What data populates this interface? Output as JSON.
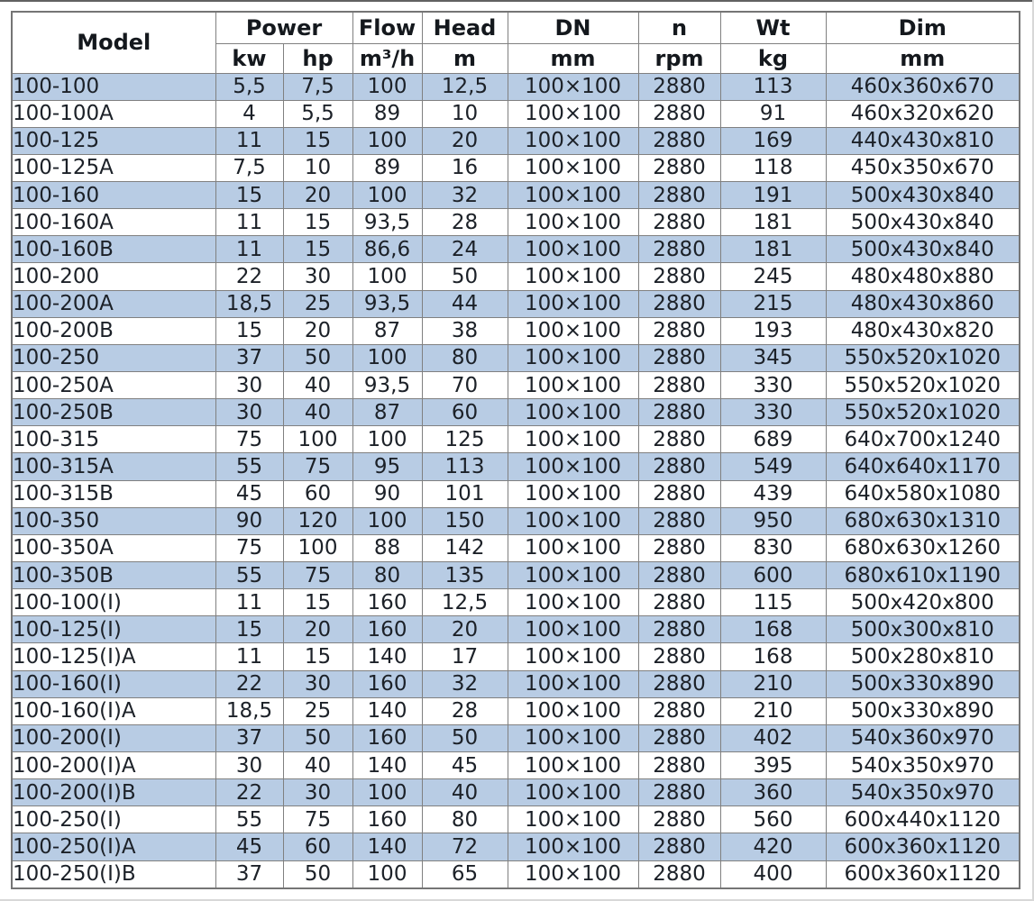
{
  "colors": {
    "stripe_blue": "#b8cce4",
    "grid_gray": "#808080",
    "text": "#1c2128"
  },
  "table": {
    "header": {
      "model": "Model",
      "power": "Power",
      "power_unit_kw": "kw",
      "power_unit_hp": "hp",
      "flow": "Flow",
      "flow_unit": "m³/h",
      "head": "Head",
      "head_unit": "m",
      "dn": "DN",
      "dn_unit": "mm",
      "n": "n",
      "n_unit": "rpm",
      "wt": "Wt",
      "wt_unit": "kg",
      "dim": "Dim",
      "dim_unit": "mm"
    },
    "column_keys": [
      "model",
      "kw",
      "hp",
      "flow",
      "head",
      "dn",
      "n",
      "wt",
      "dim"
    ],
    "rows": [
      [
        "100-100",
        "5,5",
        "7,5",
        "100",
        "12,5",
        "100×100",
        "2880",
        "113",
        "460x360x670"
      ],
      [
        "100-100A",
        "4",
        "5,5",
        "89",
        "10",
        "100×100",
        "2880",
        "91",
        "460x320x620"
      ],
      [
        "100-125",
        "11",
        "15",
        "100",
        "20",
        "100×100",
        "2880",
        "169",
        "440x430x810"
      ],
      [
        "100-125A",
        "7,5",
        "10",
        "89",
        "16",
        "100×100",
        "2880",
        "118",
        "450x350x670"
      ],
      [
        "100-160",
        "15",
        "20",
        "100",
        "32",
        "100×100",
        "2880",
        "191",
        "500x430x840"
      ],
      [
        "100-160A",
        "11",
        "15",
        "93,5",
        "28",
        "100×100",
        "2880",
        "181",
        "500x430x840"
      ],
      [
        "100-160B",
        "11",
        "15",
        "86,6",
        "24",
        "100×100",
        "2880",
        "181",
        "500x430x840"
      ],
      [
        "100-200",
        "22",
        "30",
        "100",
        "50",
        "100×100",
        "2880",
        "245",
        "480x480x880"
      ],
      [
        "100-200A",
        "18,5",
        "25",
        "93,5",
        "44",
        "100×100",
        "2880",
        "215",
        "480x430x860"
      ],
      [
        "100-200B",
        "15",
        "20",
        "87",
        "38",
        "100×100",
        "2880",
        "193",
        "480x430x820"
      ],
      [
        "100-250",
        "37",
        "50",
        "100",
        "80",
        "100×100",
        "2880",
        "345",
        "550x520x1020"
      ],
      [
        "100-250A",
        "30",
        "40",
        "93,5",
        "70",
        "100×100",
        "2880",
        "330",
        "550x520x1020"
      ],
      [
        "100-250B",
        "30",
        "40",
        "87",
        "60",
        "100×100",
        "2880",
        "330",
        "550x520x1020"
      ],
      [
        "100-315",
        "75",
        "100",
        "100",
        "125",
        "100×100",
        "2880",
        "689",
        "640x700x1240"
      ],
      [
        "100-315A",
        "55",
        "75",
        "95",
        "113",
        "100×100",
        "2880",
        "549",
        "640x640x1170"
      ],
      [
        "100-315B",
        "45",
        "60",
        "90",
        "101",
        "100×100",
        "2880",
        "439",
        "640x580x1080"
      ],
      [
        "100-350",
        "90",
        "120",
        "100",
        "150",
        "100×100",
        "2880",
        "950",
        "680x630x1310"
      ],
      [
        "100-350A",
        "75",
        "100",
        "88",
        "142",
        "100×100",
        "2880",
        "830",
        "680x630x1260"
      ],
      [
        "100-350B",
        "55",
        "75",
        "80",
        "135",
        "100×100",
        "2880",
        "600",
        "680x610x1190"
      ],
      [
        "100-100(I)",
        "11",
        "15",
        "160",
        "12,5",
        "100×100",
        "2880",
        "115",
        "500x420x800"
      ],
      [
        "100-125(I)",
        "15",
        "20",
        "160",
        "20",
        "100×100",
        "2880",
        "168",
        "500x300x810"
      ],
      [
        "100-125(I)A",
        "11",
        "15",
        "140",
        "17",
        "100×100",
        "2880",
        "168",
        "500x280x810"
      ],
      [
        "100-160(I)",
        "22",
        "30",
        "160",
        "32",
        "100×100",
        "2880",
        "210",
        "500x330x890"
      ],
      [
        "100-160(I)A",
        "18,5",
        "25",
        "140",
        "28",
        "100×100",
        "2880",
        "210",
        "500x330x890"
      ],
      [
        "100-200(I)",
        "37",
        "50",
        "160",
        "50",
        "100×100",
        "2880",
        "402",
        "540x360x970"
      ],
      [
        "100-200(I)A",
        "30",
        "40",
        "140",
        "45",
        "100×100",
        "2880",
        "395",
        "540x350x970"
      ],
      [
        "100-200(I)B",
        "22",
        "30",
        "100",
        "40",
        "100×100",
        "2880",
        "360",
        "540x350x970"
      ],
      [
        "100-250(I)",
        "55",
        "75",
        "160",
        "80",
        "100×100",
        "2880",
        "560",
        "600x440x1120"
      ],
      [
        "100-250(I)A",
        "45",
        "60",
        "140",
        "72",
        "100×100",
        "2880",
        "420",
        "600x360x1120"
      ],
      [
        "100-250(I)B",
        "37",
        "50",
        "100",
        "65",
        "100×100",
        "2880",
        "400",
        "600x360x1120"
      ]
    ]
  }
}
